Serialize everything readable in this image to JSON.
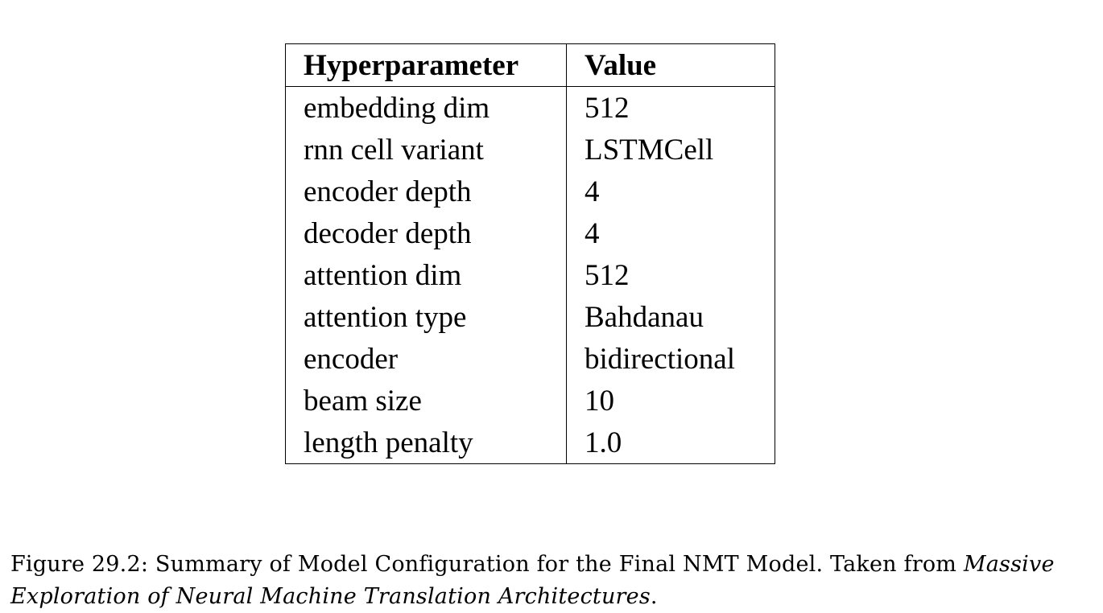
{
  "table": {
    "headers": [
      "Hyperparameter",
      "Value"
    ],
    "rows": [
      [
        "embedding dim",
        "512"
      ],
      [
        "rnn cell variant",
        "LSTMCell"
      ],
      [
        "encoder depth",
        "4"
      ],
      [
        "decoder depth",
        "4"
      ],
      [
        "attention dim",
        "512"
      ],
      [
        "attention type",
        "Bahdanau"
      ],
      [
        "encoder",
        "bidirectional"
      ],
      [
        "beam size",
        "10"
      ],
      [
        "length penalty",
        "1.0"
      ]
    ]
  },
  "caption": {
    "label": "Figure 29.2:",
    "text": "Summary of Model Configuration for the Final NMT Model. Taken from",
    "source_title": "Massive Exploration of Neural Machine Translation Architectures",
    "end": "."
  }
}
